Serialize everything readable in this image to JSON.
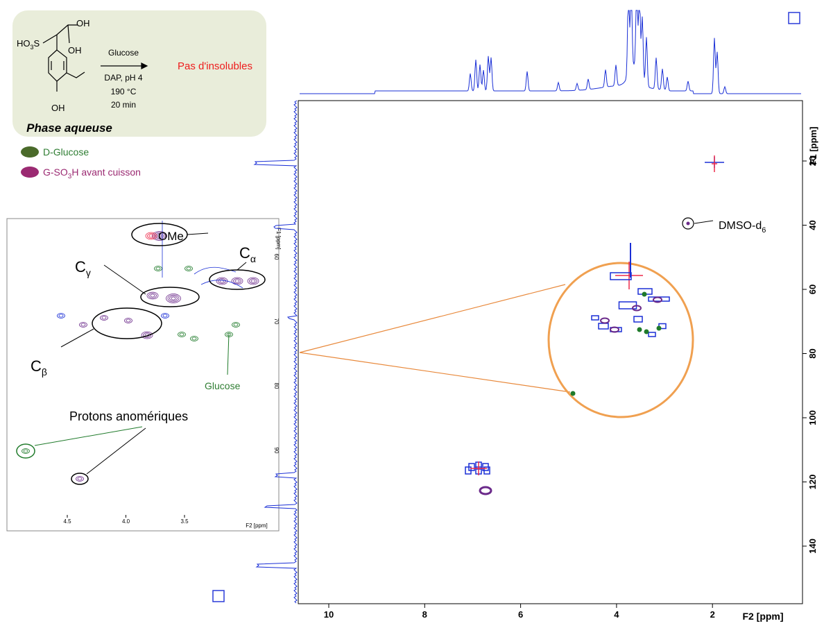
{
  "scheme": {
    "oh_top": "OH",
    "so3": {
      "text": "HO",
      "sub": "3",
      "tail": "S"
    },
    "oh_mid": "OH",
    "oh_bottom": "OH",
    "reagent": "Glucose",
    "conditions": [
      "DAP, pH 4",
      "190 °C",
      "20 min"
    ],
    "result": "Pas d'insolubles",
    "phase": "Phase aqueuse"
  },
  "legend": [
    {
      "text": "D-Glucose"
    },
    {
      "text": "G-SO",
      "sub": "3",
      "tail": "H avant cuisson"
    }
  ],
  "inset": {
    "x_ticks": [
      "4.5",
      "4.0",
      "3.5"
    ],
    "x_label": "F2 [ppm]",
    "y_ticks": [
      "60",
      "70",
      "80",
      "90"
    ],
    "y_label": "F1 [ppm]",
    "annotations": {
      "ome": "OMe",
      "c_alpha": {
        "text": "C",
        "sub": "α"
      },
      "c_gamma": {
        "text": "C",
        "sub": "γ"
      },
      "c_beta": {
        "text": "C",
        "sub": "β"
      },
      "glucose": "Glucose",
      "anomeric": "Protons anomériques"
    }
  },
  "main": {
    "x_ticks": [
      "10",
      "8",
      "6",
      "4",
      "2"
    ],
    "x_label": "F2 [ppm]",
    "y_ticks": [
      "20",
      "40",
      "60",
      "80",
      "100",
      "120",
      "140"
    ],
    "y_label": "F1 [ppm]",
    "dmso": {
      "text": "DMSO-d",
      "sub": "6"
    }
  }
}
